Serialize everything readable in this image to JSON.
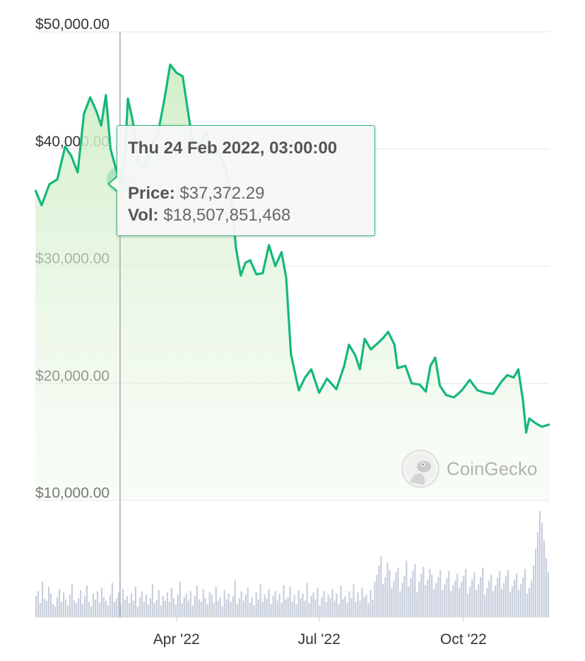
{
  "chart_data": {
    "type": "area",
    "currency_ticks": [
      {
        "value": 50000,
        "label": "$50,000.00"
      },
      {
        "value": 40000,
        "label": "$40,000.00"
      },
      {
        "value": 30000,
        "label": "$30,000.00"
      },
      {
        "value": 20000,
        "label": "$20,000.00"
      },
      {
        "value": 10000,
        "label": "$10,000.00"
      }
    ],
    "ylim": [
      10000,
      50000
    ],
    "x_range": [
      "2022-01-01",
      "2022-11-25"
    ],
    "x_ticks": [
      {
        "date": "2022-04-01",
        "label": "Apr '22"
      },
      {
        "date": "2022-07-01",
        "label": "Jul '22"
      },
      {
        "date": "2022-10-01",
        "label": "Oct '22"
      }
    ],
    "series": [
      {
        "values_price": [
          [
            "2022-01-01",
            36500
          ],
          [
            "2022-01-05",
            35200
          ],
          [
            "2022-01-10",
            37000
          ],
          [
            "2022-01-15",
            37400
          ],
          [
            "2022-01-20",
            40200
          ],
          [
            "2022-01-24",
            39400
          ],
          [
            "2022-01-28",
            38000
          ],
          [
            "2022-02-01",
            43000
          ],
          [
            "2022-02-05",
            44400
          ],
          [
            "2022-02-09",
            43200
          ],
          [
            "2022-02-12",
            42000
          ],
          [
            "2022-02-15",
            44600
          ],
          [
            "2022-02-18",
            40000
          ],
          [
            "2022-02-21",
            38500
          ],
          [
            "2022-02-24",
            37372
          ],
          [
            "2022-02-27",
            39000
          ],
          [
            "2022-03-01",
            44300
          ],
          [
            "2022-03-04",
            42500
          ],
          [
            "2022-03-08",
            38800
          ],
          [
            "2022-03-12",
            38500
          ],
          [
            "2022-03-16",
            40300
          ],
          [
            "2022-03-20",
            41200
          ],
          [
            "2022-03-24",
            44000
          ],
          [
            "2022-03-28",
            47200
          ],
          [
            "2022-04-01",
            46500
          ],
          [
            "2022-04-05",
            46200
          ],
          [
            "2022-04-08",
            43500
          ],
          [
            "2022-04-12",
            40000
          ],
          [
            "2022-04-16",
            40300
          ],
          [
            "2022-04-20",
            41500
          ],
          [
            "2022-04-24",
            39600
          ],
          [
            "2022-04-28",
            39700
          ],
          [
            "2022-05-02",
            38500
          ],
          [
            "2022-05-06",
            36000
          ],
          [
            "2022-05-09",
            31500
          ],
          [
            "2022-05-12",
            29200
          ],
          [
            "2022-05-15",
            30300
          ],
          [
            "2022-05-18",
            30500
          ],
          [
            "2022-05-22",
            29300
          ],
          [
            "2022-05-26",
            29400
          ],
          [
            "2022-05-30",
            31800
          ],
          [
            "2022-06-03",
            30000
          ],
          [
            "2022-06-07",
            31200
          ],
          [
            "2022-06-10",
            29000
          ],
          [
            "2022-06-13",
            22500
          ],
          [
            "2022-06-18",
            19400
          ],
          [
            "2022-06-22",
            20500
          ],
          [
            "2022-06-26",
            21200
          ],
          [
            "2022-07-01",
            19200
          ],
          [
            "2022-07-06",
            20400
          ],
          [
            "2022-07-12",
            19500
          ],
          [
            "2022-07-17",
            21500
          ],
          [
            "2022-07-20",
            23300
          ],
          [
            "2022-07-24",
            22400
          ],
          [
            "2022-07-27",
            21200
          ],
          [
            "2022-07-30",
            23800
          ],
          [
            "2022-08-03",
            22900
          ],
          [
            "2022-08-08",
            23500
          ],
          [
            "2022-08-11",
            23900
          ],
          [
            "2022-08-14",
            24400
          ],
          [
            "2022-08-18",
            23300
          ],
          [
            "2022-08-20",
            21300
          ],
          [
            "2022-08-25",
            21500
          ],
          [
            "2022-08-29",
            20000
          ],
          [
            "2022-09-03",
            19900
          ],
          [
            "2022-09-07",
            19300
          ],
          [
            "2022-09-10",
            21500
          ],
          [
            "2022-09-13",
            22200
          ],
          [
            "2022-09-16",
            19800
          ],
          [
            "2022-09-20",
            19000
          ],
          [
            "2022-09-25",
            18800
          ],
          [
            "2022-09-30",
            19400
          ],
          [
            "2022-10-05",
            20300
          ],
          [
            "2022-10-10",
            19400
          ],
          [
            "2022-10-15",
            19200
          ],
          [
            "2022-10-20",
            19100
          ],
          [
            "2022-10-25",
            20100
          ],
          [
            "2022-10-29",
            20700
          ],
          [
            "2022-11-02",
            20500
          ],
          [
            "2022-11-05",
            21200
          ],
          [
            "2022-11-08",
            18500
          ],
          [
            "2022-11-10",
            15800
          ],
          [
            "2022-11-12",
            17000
          ],
          [
            "2022-11-16",
            16600
          ],
          [
            "2022-11-20",
            16300
          ],
          [
            "2022-11-25",
            16500
          ]
        ]
      }
    ],
    "volume_bars": [
      18,
      22,
      12,
      30,
      16,
      14,
      26,
      20,
      11,
      9,
      17,
      24,
      13,
      21,
      15,
      10,
      19,
      28,
      14,
      12,
      16,
      23,
      11,
      18,
      27,
      13,
      9,
      20,
      15,
      22,
      12,
      25,
      17,
      14,
      10,
      19,
      29,
      13,
      16,
      21,
      11,
      24,
      15,
      18,
      12,
      20,
      14,
      26,
      9,
      17,
      22,
      13,
      19,
      11,
      16,
      28,
      12,
      15,
      23,
      10,
      18,
      14,
      21,
      13,
      25,
      16,
      11,
      19,
      30,
      12,
      17,
      20,
      14,
      22,
      10,
      18,
      27,
      15,
      13,
      24,
      16,
      11,
      21,
      19,
      12,
      26,
      14,
      17,
      9,
      23,
      15,
      20,
      13,
      18,
      31,
      11,
      16,
      22,
      14,
      19,
      25,
      12,
      17,
      10,
      21,
      15,
      28,
      13,
      19,
      16,
      24,
      11,
      18,
      22,
      14,
      20,
      12,
      27,
      15,
      17,
      26,
      13,
      19,
      11,
      23,
      16,
      20,
      14,
      29,
      12,
      18,
      21,
      15,
      25,
      10,
      17,
      22,
      13,
      19,
      16,
      24,
      14,
      20,
      11,
      27,
      15,
      18,
      12,
      22,
      16,
      28,
      13,
      21,
      14,
      25,
      17,
      19,
      12,
      23,
      15,
      30,
      36,
      44,
      52,
      28,
      34,
      46,
      40,
      25,
      31,
      38,
      42,
      22,
      29,
      35,
      48,
      26,
      33,
      39,
      45,
      21,
      30,
      37,
      43,
      27,
      32,
      41,
      36,
      24,
      29,
      34,
      40,
      23,
      28,
      33,
      39,
      22,
      27,
      31,
      37,
      25,
      30,
      35,
      41,
      20,
      26,
      32,
      38,
      23,
      28,
      34,
      42,
      19,
      25,
      31,
      36,
      22,
      27,
      33,
      39,
      24,
      29,
      35,
      40,
      21,
      26,
      32,
      37,
      23,
      28,
      34,
      41,
      20,
      25,
      31,
      44,
      58,
      72,
      90,
      80,
      65,
      50,
      38
    ]
  },
  "tooltip": {
    "date": "Thu 24 Feb 2022, 03:00:00",
    "price_label": "Price:",
    "price_value": "$37,372.29",
    "vol_label": "Vol:",
    "vol_value": "$18,507,851,468"
  },
  "watermark": {
    "text": "CoinGecko",
    "icon": "gecko-logo-icon"
  },
  "colors": {
    "line": "#16b87a",
    "area": "#dff2d8",
    "volume": "#c8cfdc",
    "grid": "#e6e6e6"
  }
}
